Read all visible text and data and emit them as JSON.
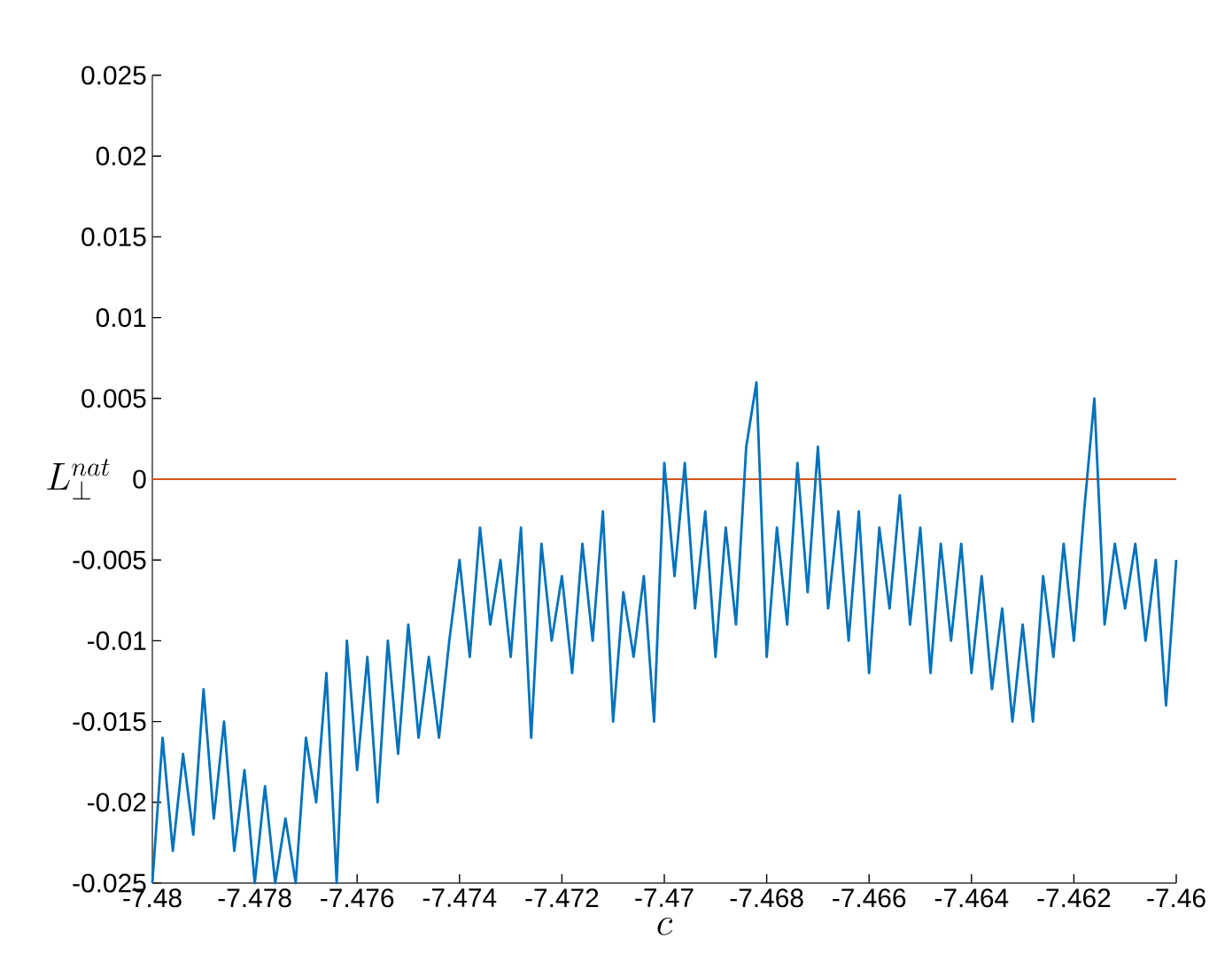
{
  "chart_data": {
    "type": "line",
    "xlabel": "c",
    "ylabel": "L_{\\perp}^{nat}",
    "x": [
      -7.48,
      -7.4798,
      -7.4796,
      -7.4794,
      -7.4792,
      -7.479,
      -7.4788,
      -7.4786,
      -7.4784,
      -7.4782,
      -7.478,
      -7.4778,
      -7.4776,
      -7.4774,
      -7.4772,
      -7.477,
      -7.4768,
      -7.4766,
      -7.4764,
      -7.4762,
      -7.476,
      -7.4758,
      -7.4756,
      -7.4754,
      -7.4752,
      -7.475,
      -7.4748,
      -7.4746,
      -7.4744,
      -7.4742,
      -7.474,
      -7.4738,
      -7.4736,
      -7.4734,
      -7.4732,
      -7.473,
      -7.4728,
      -7.4726,
      -7.4724,
      -7.4722,
      -7.472,
      -7.4718,
      -7.4716,
      -7.4714,
      -7.4712,
      -7.471,
      -7.4708,
      -7.4706,
      -7.4704,
      -7.4702,
      -7.47,
      -7.4698,
      -7.4696,
      -7.4694,
      -7.4692,
      -7.469,
      -7.4688,
      -7.4686,
      -7.4684,
      -7.4682,
      -7.468,
      -7.4678,
      -7.4676,
      -7.4674,
      -7.4672,
      -7.467,
      -7.4668,
      -7.4666,
      -7.4664,
      -7.4662,
      -7.466,
      -7.4658,
      -7.4656,
      -7.4654,
      -7.4652,
      -7.465,
      -7.4648,
      -7.4646,
      -7.4644,
      -7.4642,
      -7.464,
      -7.4638,
      -7.4636,
      -7.4634,
      -7.4632,
      -7.463,
      -7.4628,
      -7.4626,
      -7.4624,
      -7.4622,
      -7.462,
      -7.4618,
      -7.4616,
      -7.4614,
      -7.4612,
      -7.461,
      -7.4608,
      -7.4606,
      -7.4604,
      -7.4602,
      -7.46
    ],
    "series": [
      {
        "color": "#0072bd",
        "values": [
          -0.025,
          -0.016,
          -0.023,
          -0.017,
          -0.022,
          -0.013,
          -0.021,
          -0.015,
          -0.023,
          -0.018,
          -0.025,
          -0.019,
          -0.025,
          -0.021,
          -0.025,
          -0.016,
          -0.02,
          -0.012,
          -0.025,
          -0.01,
          -0.018,
          -0.011,
          -0.02,
          -0.01,
          -0.017,
          -0.009,
          -0.016,
          -0.011,
          -0.016,
          -0.01,
          -0.005,
          -0.011,
          -0.003,
          -0.009,
          -0.005,
          -0.011,
          -0.003,
          -0.016,
          -0.004,
          -0.01,
          -0.006,
          -0.012,
          -0.004,
          -0.01,
          -0.002,
          -0.015,
          -0.007,
          -0.011,
          -0.006,
          -0.015,
          0.001,
          -0.006,
          0.001,
          -0.008,
          -0.002,
          -0.011,
          -0.003,
          -0.009,
          0.002,
          0.006,
          -0.011,
          -0.003,
          -0.009,
          0.001,
          -0.007,
          0.002,
          -0.008,
          -0.002,
          -0.01,
          -0.002,
          -0.012,
          -0.003,
          -0.008,
          -0.001,
          -0.009,
          -0.003,
          -0.012,
          -0.004,
          -0.01,
          -0.004,
          -0.012,
          -0.006,
          -0.013,
          -0.008,
          -0.015,
          -0.009,
          -0.015,
          -0.006,
          -0.011,
          -0.004,
          -0.01,
          -0.002,
          0.005,
          -0.009,
          -0.004,
          -0.008,
          -0.004,
          -0.01,
          -0.005,
          -0.014,
          -0.005
        ]
      }
    ],
    "xlim": [
      -7.48,
      -7.46
    ],
    "ylim": [
      -0.025,
      0.025
    ],
    "xticks": [
      -7.48,
      -7.478,
      -7.476,
      -7.474,
      -7.472,
      -7.47,
      -7.468,
      -7.466,
      -7.464,
      -7.462,
      -7.46
    ],
    "yticks": [
      -0.025,
      -0.02,
      -0.015,
      -0.01,
      -0.005,
      0,
      0.005,
      0.01,
      0.015,
      0.02,
      0.025
    ],
    "ref_lines": [
      {
        "axis": "y",
        "value": 0,
        "color": "#d95319"
      }
    ]
  }
}
